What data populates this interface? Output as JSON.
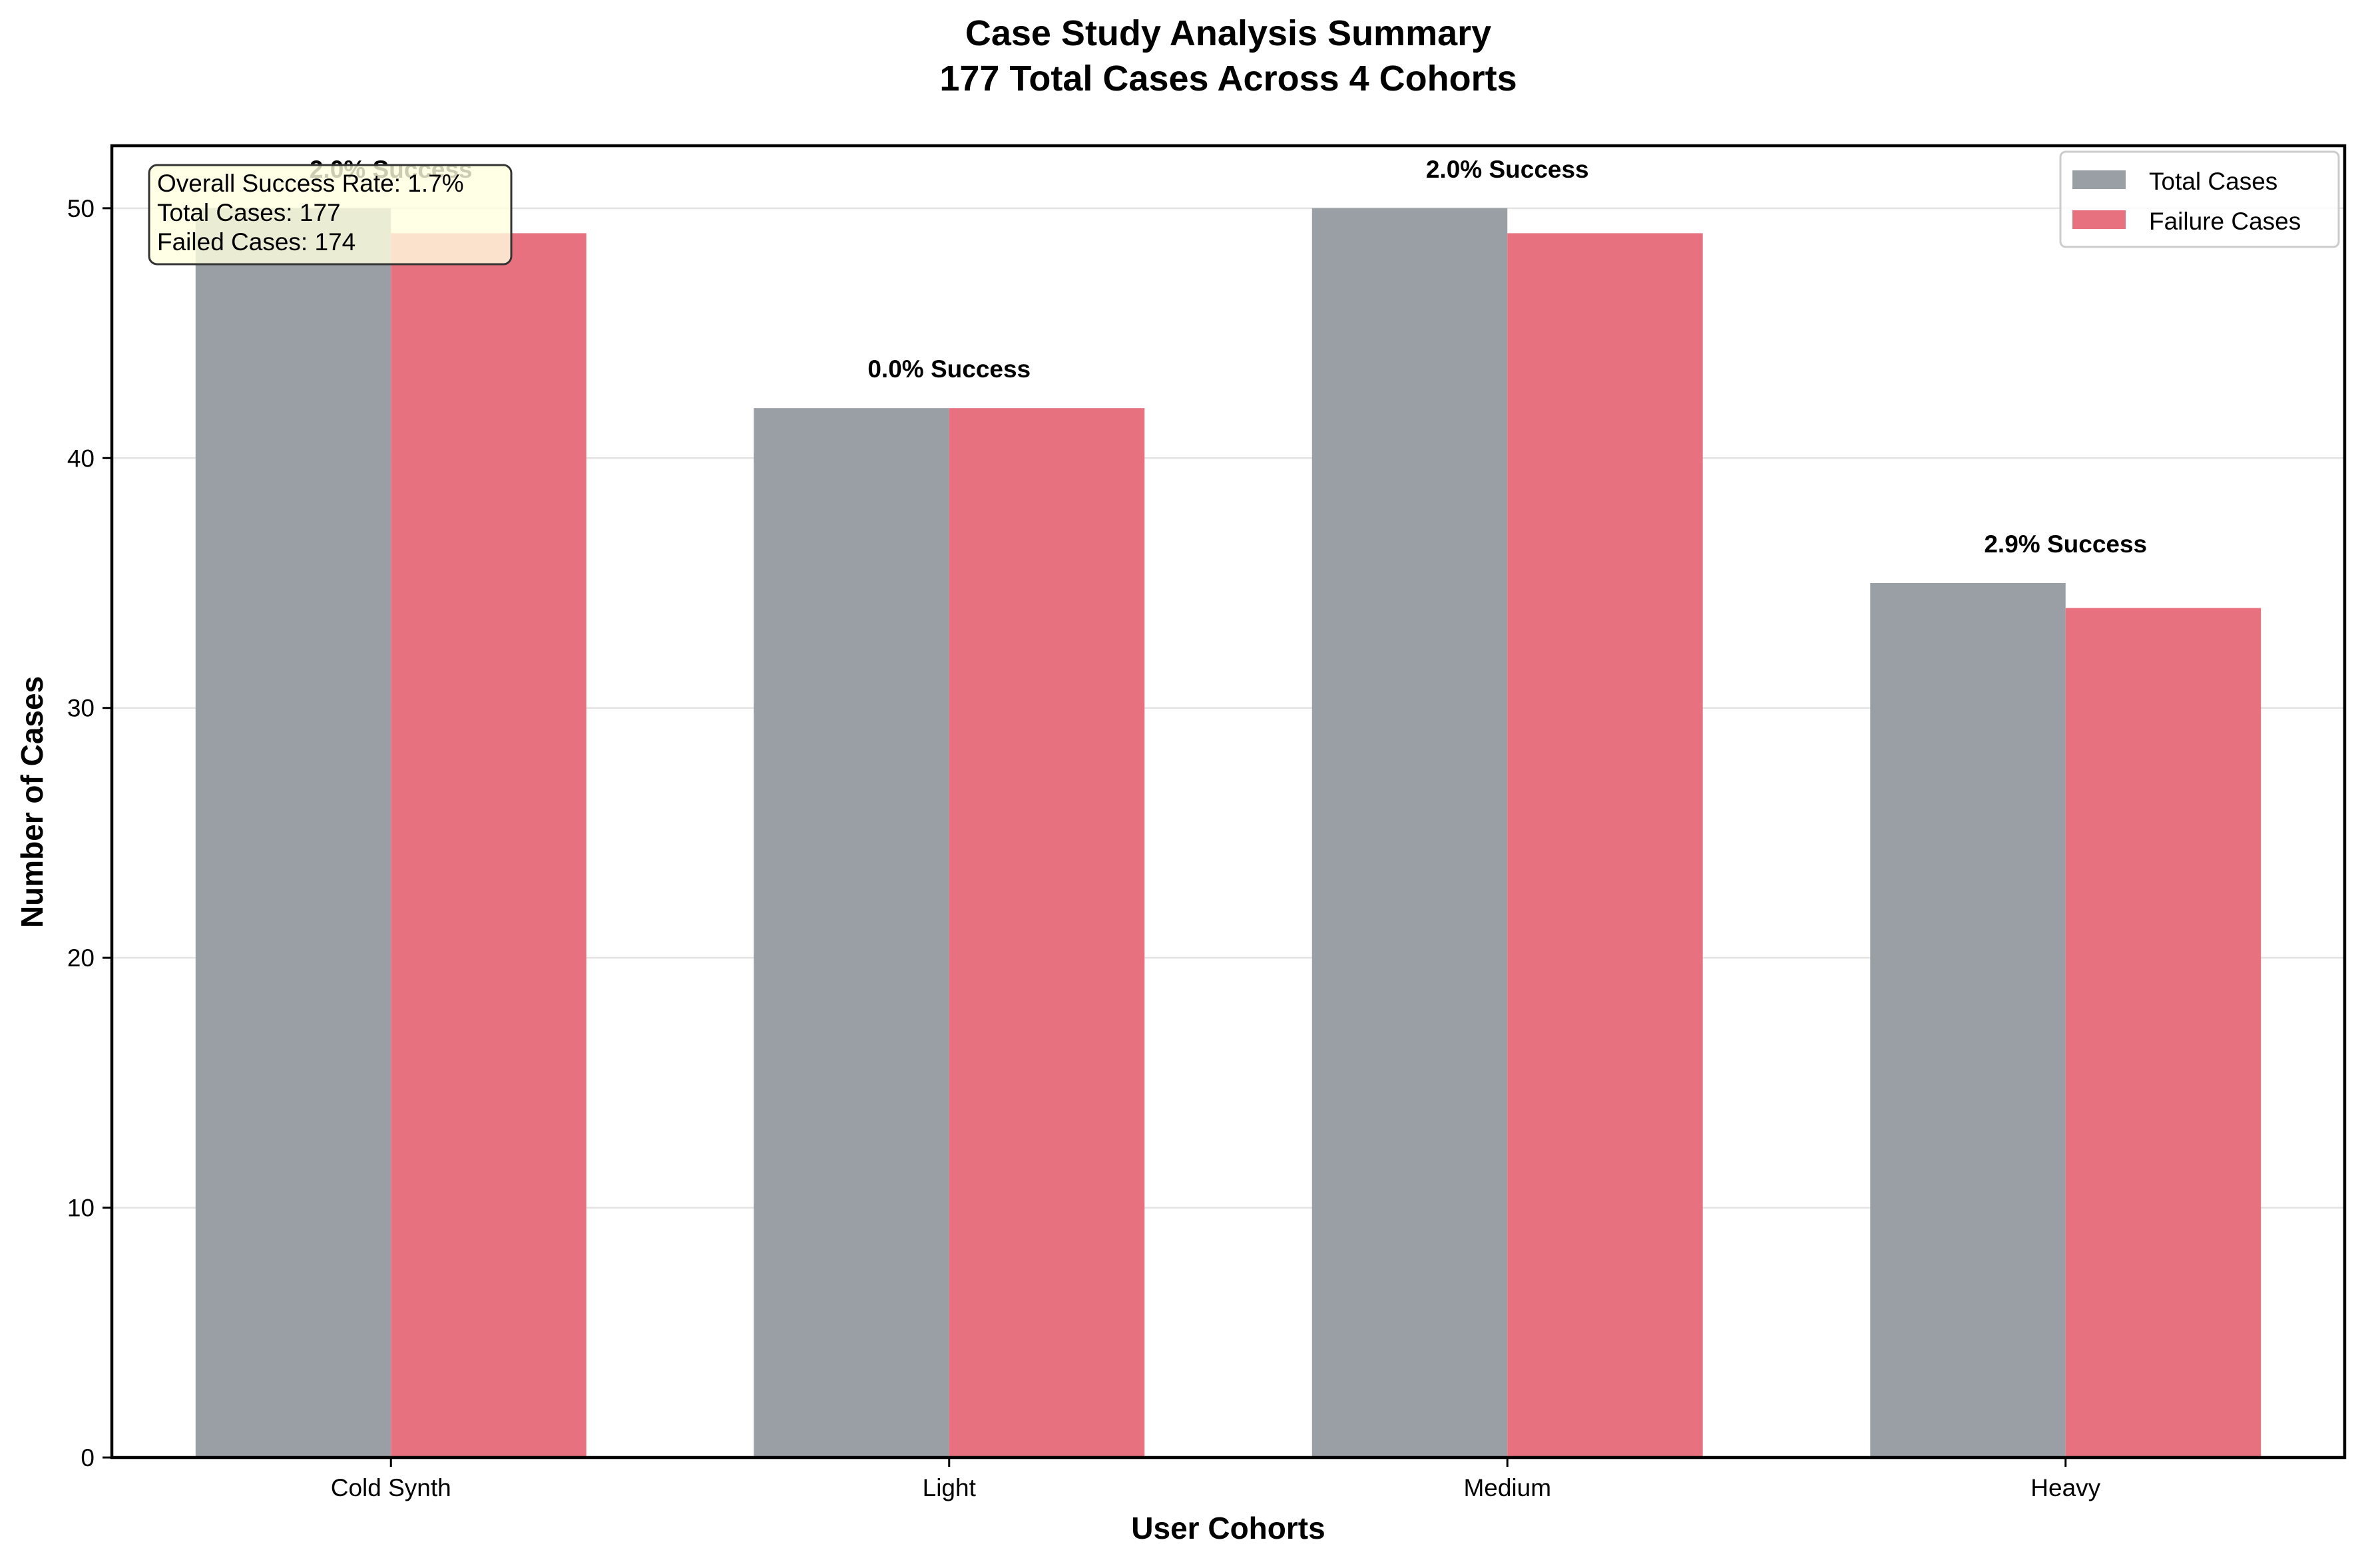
{
  "chart_data": {
    "type": "bar",
    "title": "Case Study Analysis Summary",
    "subtitle": "177 Total Cases Across 4 Cohorts",
    "xlabel": "User Cohorts",
    "ylabel": "Number of Cases",
    "categories": [
      "Cold Synth",
      "Light",
      "Medium",
      "Heavy"
    ],
    "series": [
      {
        "name": "Total Cases",
        "values": [
          50,
          42,
          50,
          35
        ],
        "color": "#9a9fa6"
      },
      {
        "name": "Failure Cases",
        "values": [
          49,
          42,
          49,
          34
        ],
        "color": "#e8717f"
      }
    ],
    "bar_annotations": [
      "2.0% Success",
      "0.0% Success",
      "2.0% Success",
      "2.9% Success"
    ],
    "ylim": [
      0,
      52.5
    ],
    "yticks": [
      0,
      10,
      20,
      30,
      40,
      50
    ],
    "grid": true,
    "legend_position": "top-right",
    "summary_box": {
      "lines": [
        "Overall Success Rate: 1.7%",
        "Total Cases: 177",
        "Failed Cases: 174"
      ],
      "position": "top-left",
      "background": "#ffffe0"
    }
  }
}
